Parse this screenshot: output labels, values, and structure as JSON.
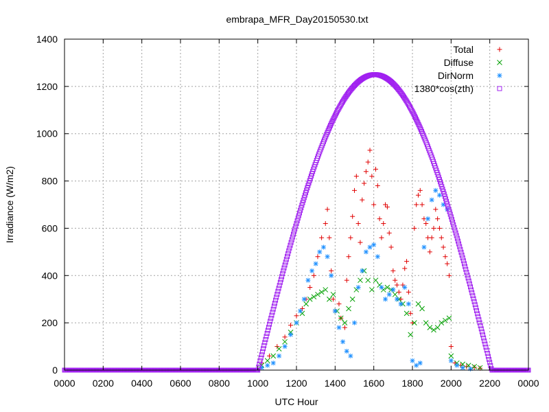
{
  "chart_data": {
    "type": "scatter",
    "title": "embrapa_MFR_Day20150530.txt",
    "xlabel": "UTC Hour",
    "ylabel": "Irradiance (W/m2)",
    "xlim": [
      0,
      24
    ],
    "ylim": [
      0,
      1400
    ],
    "x_ticks": [
      {
        "value": 0,
        "label": "0000"
      },
      {
        "value": 2,
        "label": "0200"
      },
      {
        "value": 4,
        "label": "0400"
      },
      {
        "value": 6,
        "label": "0600"
      },
      {
        "value": 8,
        "label": "0800"
      },
      {
        "value": 10,
        "label": "1000"
      },
      {
        "value": 12,
        "label": "1200"
      },
      {
        "value": 14,
        "label": "1400"
      },
      {
        "value": 16,
        "label": "1600"
      },
      {
        "value": 18,
        "label": "1800"
      },
      {
        "value": 20,
        "label": "2000"
      },
      {
        "value": 22,
        "label": "2200"
      },
      {
        "value": 24,
        "label": "0000"
      }
    ],
    "y_ticks": [
      0,
      200,
      400,
      600,
      800,
      1000,
      1200,
      1400
    ],
    "grid": true,
    "legend_position": "top-right",
    "series": [
      {
        "name": "Total",
        "marker": "plus",
        "color": "#e00000",
        "x": [
          10.2,
          10.6,
          11.0,
          11.4,
          11.7,
          12.0,
          12.3,
          12.5,
          12.7,
          12.9,
          13.1,
          13.3,
          13.5,
          13.6,
          13.7,
          13.8,
          13.9,
          14.0,
          14.2,
          14.3,
          14.5,
          14.6,
          14.7,
          14.8,
          14.9,
          15.0,
          15.1,
          15.2,
          15.3,
          15.4,
          15.5,
          15.6,
          15.7,
          15.8,
          15.9,
          16.0,
          16.1,
          16.2,
          16.3,
          16.4,
          16.5,
          16.6,
          16.7,
          16.8,
          16.9,
          17.0,
          17.1,
          17.2,
          17.3,
          17.4,
          17.5,
          17.6,
          17.7,
          17.8,
          17.9,
          18.0,
          18.1,
          18.2,
          18.3,
          18.4,
          18.5,
          18.6,
          18.7,
          18.8,
          18.9,
          19.0,
          19.1,
          19.2,
          19.3,
          19.4,
          19.5,
          19.6,
          19.7,
          19.8,
          19.9,
          20.0,
          20.2,
          20.5,
          20.8,
          21.2,
          21.5
        ],
        "y": [
          30,
          60,
          100,
          140,
          190,
          230,
          260,
          300,
          350,
          400,
          480,
          560,
          620,
          680,
          560,
          420,
          300,
          250,
          280,
          220,
          180,
          380,
          480,
          560,
          650,
          760,
          820,
          620,
          540,
          720,
          790,
          840,
          880,
          930,
          820,
          700,
          850,
          780,
          640,
          560,
          620,
          700,
          690,
          580,
          520,
          420,
          380,
          360,
          330,
          300,
          360,
          430,
          460,
          330,
          240,
          200,
          600,
          700,
          740,
          760,
          700,
          640,
          620,
          560,
          500,
          560,
          600,
          680,
          640,
          600,
          560,
          520,
          480,
          450,
          400,
          100,
          30,
          20,
          15,
          12,
          8
        ]
      },
      {
        "name": "Diffuse",
        "marker": "cross",
        "color": "#00a000",
        "x": [
          10.2,
          10.5,
          10.8,
          11.1,
          11.4,
          11.7,
          12.0,
          12.3,
          12.5,
          12.7,
          12.9,
          13.1,
          13.3,
          13.5,
          13.7,
          13.9,
          14.1,
          14.3,
          14.5,
          14.7,
          14.9,
          15.1,
          15.3,
          15.5,
          15.7,
          15.9,
          16.1,
          16.3,
          16.5,
          16.7,
          16.9,
          17.1,
          17.3,
          17.5,
          17.7,
          17.9,
          18.1,
          18.3,
          18.5,
          18.7,
          18.9,
          19.1,
          19.3,
          19.5,
          19.7,
          19.9,
          20.0,
          20.3,
          20.6,
          20.9,
          21.2,
          21.5
        ],
        "y": [
          20,
          40,
          60,
          90,
          120,
          160,
          200,
          240,
          280,
          300,
          310,
          320,
          330,
          340,
          300,
          320,
          250,
          220,
          200,
          260,
          300,
          340,
          380,
          420,
          380,
          340,
          380,
          360,
          340,
          350,
          340,
          320,
          300,
          280,
          240,
          150,
          200,
          280,
          260,
          200,
          180,
          170,
          180,
          200,
          210,
          220,
          60,
          30,
          25,
          20,
          15,
          10
        ]
      },
      {
        "name": "DirNorm",
        "marker": "star",
        "color": "#1e90ff",
        "x": [
          10.2,
          10.5,
          10.8,
          11.1,
          11.4,
          11.7,
          12.0,
          12.2,
          12.4,
          12.6,
          12.8,
          13.0,
          13.2,
          13.4,
          13.6,
          13.8,
          14.0,
          14.2,
          14.4,
          14.6,
          14.8,
          15.0,
          15.2,
          15.4,
          15.6,
          15.8,
          16.0,
          16.2,
          16.4,
          16.6,
          16.8,
          17.0,
          17.2,
          17.4,
          17.6,
          17.8,
          18.0,
          18.2,
          18.4,
          18.6,
          18.8,
          19.0,
          19.2,
          19.4,
          19.6,
          19.8,
          20.0,
          20.3,
          20.6,
          21.0
        ],
        "y": [
          10,
          20,
          30,
          60,
          100,
          150,
          200,
          250,
          300,
          380,
          420,
          450,
          500,
          520,
          480,
          400,
          250,
          180,
          120,
          80,
          60,
          200,
          350,
          420,
          500,
          520,
          530,
          480,
          350,
          300,
          320,
          340,
          300,
          280,
          350,
          280,
          40,
          20,
          30,
          520,
          640,
          720,
          760,
          740,
          700,
          680,
          40,
          20,
          10,
          5
        ]
      },
      {
        "name": "1380*cos(zth)",
        "marker": "square",
        "color": "#a020f0",
        "function": "clearsky",
        "peak": 1250,
        "sunrise": 10.0,
        "sunset": 22.1
      }
    ]
  }
}
